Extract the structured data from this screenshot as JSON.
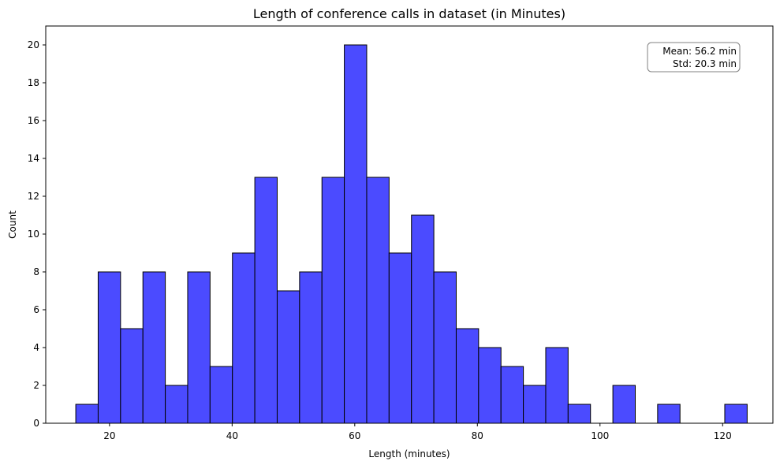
{
  "chart_data": {
    "type": "bar",
    "title": "Length of conference calls in dataset (in Minutes)",
    "xlabel": "Length (minutes)",
    "ylabel": "Count",
    "xlim": [
      9.6,
      128.2
    ],
    "ylim": [
      0,
      21
    ],
    "x_ticks": [
      20,
      40,
      60,
      80,
      100,
      120
    ],
    "y_ticks": [
      0,
      2,
      4,
      6,
      8,
      10,
      12,
      14,
      16,
      18,
      20
    ],
    "bin_edges": [
      14.5,
      18.15,
      21.8,
      25.45,
      29.1,
      32.75,
      36.4,
      40.05,
      43.7,
      47.35,
      51.0,
      54.65,
      58.3,
      61.95,
      65.6,
      69.25,
      72.9,
      76.55,
      80.2,
      83.85,
      87.5,
      91.15,
      94.8,
      98.45,
      102.1,
      105.75,
      109.4,
      113.05,
      116.7,
      120.35,
      124.0
    ],
    "values": [
      1,
      8,
      5,
      8,
      2,
      8,
      3,
      9,
      13,
      7,
      8,
      13,
      20,
      13,
      9,
      11,
      8,
      5,
      4,
      3,
      2,
      4,
      1,
      0,
      2,
      0,
      1,
      0,
      0,
      1
    ],
    "bar_color": "#4b4bff",
    "edge_color": "#000000",
    "grid": false,
    "legend": false,
    "annotation": {
      "lines": [
        "Mean: 56.2 min",
        "Std: 20.3 min"
      ],
      "position": "top-right"
    }
  }
}
